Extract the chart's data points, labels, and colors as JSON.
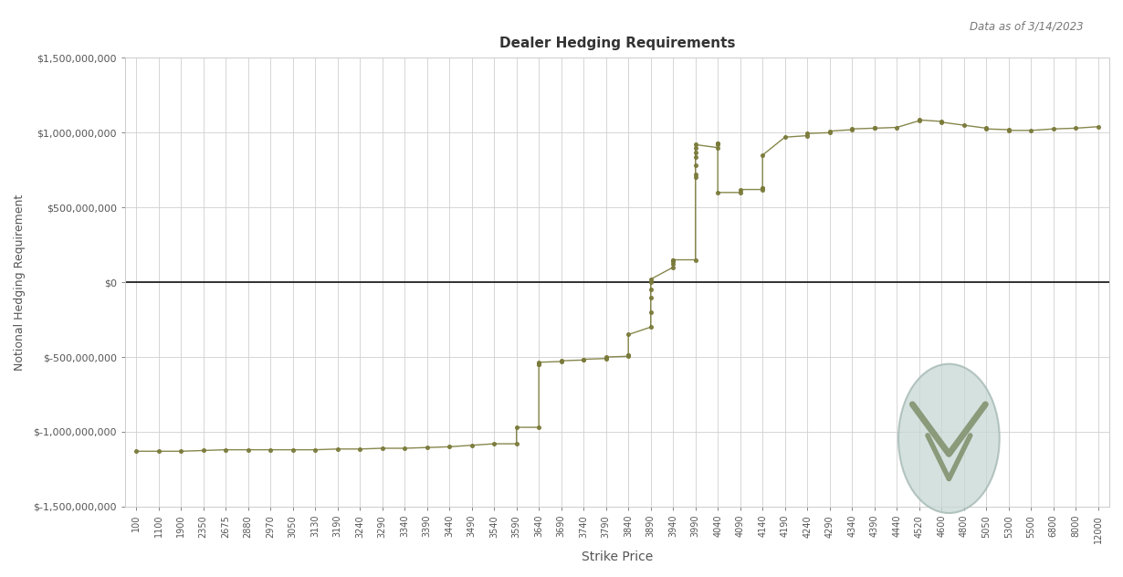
{
  "title": "Dealer Hedging Requirements",
  "date_label": "Data as of 3/14/2023",
  "xlabel": "Strike Price",
  "ylabel": "Notional Hedging Requirement",
  "background_color": "#ffffff",
  "grid_color": "#d0d0d0",
  "line_color": "#7a7a3a",
  "zero_line_color": "#222222",
  "title_color": "#333333",
  "axis_color": "#555555",
  "x_tick_labels": [
    "100",
    "1100",
    "1900",
    "2350",
    "2675",
    "2880",
    "2970",
    "3050",
    "3130",
    "3190",
    "3240",
    "3290",
    "3340",
    "3390",
    "3440",
    "3490",
    "3540",
    "3590",
    "3640",
    "3690",
    "3740",
    "3790",
    "3840",
    "3890",
    "3940",
    "3990",
    "4040",
    "4090",
    "4140",
    "4190",
    "4240",
    "4290",
    "4340",
    "4390",
    "4440",
    "4520",
    "4600",
    "4800",
    "5050",
    "5300",
    "5500",
    "6800",
    "8000",
    "12000"
  ],
  "ylim": [
    -1500000000,
    1500000000
  ],
  "yticks": [
    -1500000000,
    -1000000000,
    -500000000,
    0,
    500000000,
    1000000000,
    1500000000
  ],
  "ytick_labels": [
    "$-1,500,000,000",
    "$-1,000,000,000",
    "$-500,000,000",
    "$0",
    "$500,000,000",
    "$1,000,000,000",
    "$1,500,000,000"
  ],
  "logo_color_outer": "#c8d8d5",
  "logo_color_v": "#8a9a7a",
  "logo_color_ring": "#a0b0a0"
}
